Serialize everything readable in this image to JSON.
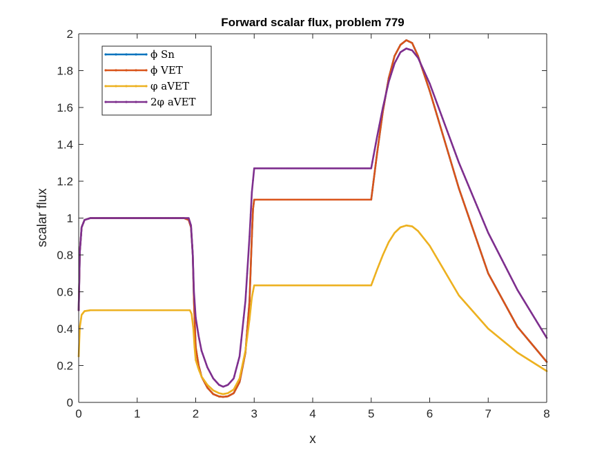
{
  "chart_data": {
    "type": "line",
    "title": "Forward scalar flux, problem 779",
    "xlabel": "x",
    "ylabel": "scalar flux",
    "xlim": [
      0,
      8
    ],
    "ylim": [
      0,
      2
    ],
    "xticks": [
      "0",
      "1",
      "2",
      "3",
      "4",
      "5",
      "6",
      "7",
      "8"
    ],
    "yticks": [
      "0",
      "0.2",
      "0.4",
      "0.6",
      "0.8",
      "1",
      "1.2",
      "1.4",
      "1.6",
      "1.8",
      "2"
    ],
    "grid": false,
    "legend": "top-left",
    "series": [
      {
        "name": "ϕ Sn",
        "color": "#0072BD",
        "points": [
          [
            0,
            0.5
          ],
          [
            0.02,
            0.82
          ],
          [
            0.05,
            0.95
          ],
          [
            0.1,
            0.99
          ],
          [
            0.2,
            1.0
          ],
          [
            1.8,
            1.0
          ],
          [
            1.88,
            0.99
          ],
          [
            1.92,
            0.95
          ],
          [
            1.95,
            0.8
          ],
          [
            1.97,
            0.55
          ],
          [
            2.0,
            0.3
          ],
          [
            2.05,
            0.2
          ],
          [
            2.1,
            0.14
          ],
          [
            2.2,
            0.08
          ],
          [
            2.3,
            0.045
          ],
          [
            2.4,
            0.032
          ],
          [
            2.47,
            0.03
          ],
          [
            2.55,
            0.033
          ],
          [
            2.65,
            0.05
          ],
          [
            2.75,
            0.11
          ],
          [
            2.85,
            0.27
          ],
          [
            2.92,
            0.55
          ],
          [
            2.96,
            0.9
          ],
          [
            2.98,
            1.05
          ],
          [
            3.0,
            1.1
          ],
          [
            5.0,
            1.1
          ],
          [
            5.1,
            1.35
          ],
          [
            5.2,
            1.58
          ],
          [
            5.3,
            1.76
          ],
          [
            5.4,
            1.88
          ],
          [
            5.5,
            1.94
          ],
          [
            5.6,
            1.965
          ],
          [
            5.7,
            1.95
          ],
          [
            5.8,
            1.88
          ],
          [
            6.0,
            1.69
          ],
          [
            6.5,
            1.16
          ],
          [
            7.0,
            0.7
          ],
          [
            7.5,
            0.41
          ],
          [
            8.0,
            0.22
          ]
        ]
      },
      {
        "name": "ϕ VET",
        "color": "#D95319",
        "points": [
          [
            0,
            0.5
          ],
          [
            0.02,
            0.82
          ],
          [
            0.05,
            0.95
          ],
          [
            0.1,
            0.99
          ],
          [
            0.2,
            1.0
          ],
          [
            1.8,
            1.0
          ],
          [
            1.88,
            0.99
          ],
          [
            1.92,
            0.95
          ],
          [
            1.95,
            0.8
          ],
          [
            1.97,
            0.55
          ],
          [
            2.0,
            0.3
          ],
          [
            2.05,
            0.2
          ],
          [
            2.1,
            0.14
          ],
          [
            2.2,
            0.08
          ],
          [
            2.3,
            0.045
          ],
          [
            2.4,
            0.032
          ],
          [
            2.47,
            0.03
          ],
          [
            2.55,
            0.033
          ],
          [
            2.65,
            0.05
          ],
          [
            2.75,
            0.11
          ],
          [
            2.85,
            0.27
          ],
          [
            2.92,
            0.55
          ],
          [
            2.96,
            0.9
          ],
          [
            2.98,
            1.05
          ],
          [
            3.0,
            1.1
          ],
          [
            5.0,
            1.1
          ],
          [
            5.1,
            1.35
          ],
          [
            5.2,
            1.58
          ],
          [
            5.3,
            1.76
          ],
          [
            5.4,
            1.88
          ],
          [
            5.5,
            1.94
          ],
          [
            5.6,
            1.965
          ],
          [
            5.7,
            1.95
          ],
          [
            5.8,
            1.88
          ],
          [
            6.0,
            1.69
          ],
          [
            6.5,
            1.16
          ],
          [
            7.0,
            0.7
          ],
          [
            7.5,
            0.41
          ],
          [
            8.0,
            0.22
          ]
        ]
      },
      {
        "name": "φ aVET",
        "color": "#EDB120",
        "points": [
          [
            0,
            0.25
          ],
          [
            0.02,
            0.41
          ],
          [
            0.05,
            0.475
          ],
          [
            0.1,
            0.495
          ],
          [
            0.2,
            0.5
          ],
          [
            1.9,
            0.5
          ],
          [
            1.93,
            0.48
          ],
          [
            1.96,
            0.4
          ],
          [
            1.98,
            0.3
          ],
          [
            2.0,
            0.23
          ],
          [
            2.05,
            0.18
          ],
          [
            2.1,
            0.14
          ],
          [
            2.2,
            0.095
          ],
          [
            2.3,
            0.065
          ],
          [
            2.4,
            0.05
          ],
          [
            2.47,
            0.045
          ],
          [
            2.55,
            0.05
          ],
          [
            2.65,
            0.07
          ],
          [
            2.75,
            0.13
          ],
          [
            2.85,
            0.28
          ],
          [
            2.92,
            0.45
          ],
          [
            2.96,
            0.57
          ],
          [
            3.0,
            0.635
          ],
          [
            5.0,
            0.635
          ],
          [
            5.1,
            0.72
          ],
          [
            5.2,
            0.8
          ],
          [
            5.3,
            0.87
          ],
          [
            5.4,
            0.92
          ],
          [
            5.5,
            0.95
          ],
          [
            5.6,
            0.96
          ],
          [
            5.7,
            0.955
          ],
          [
            5.8,
            0.93
          ],
          [
            6.0,
            0.85
          ],
          [
            6.5,
            0.58
          ],
          [
            7.0,
            0.4
          ],
          [
            7.5,
            0.27
          ],
          [
            8.0,
            0.17
          ]
        ]
      },
      {
        "name": "2φ aVET",
        "color": "#7E2F8E",
        "points": [
          [
            0,
            0.5
          ],
          [
            0.02,
            0.82
          ],
          [
            0.05,
            0.95
          ],
          [
            0.1,
            0.99
          ],
          [
            0.2,
            1.0
          ],
          [
            1.88,
            1.0
          ],
          [
            1.92,
            0.96
          ],
          [
            1.95,
            0.8
          ],
          [
            1.97,
            0.6
          ],
          [
            2.0,
            0.46
          ],
          [
            2.05,
            0.36
          ],
          [
            2.1,
            0.28
          ],
          [
            2.2,
            0.19
          ],
          [
            2.3,
            0.13
          ],
          [
            2.4,
            0.095
          ],
          [
            2.47,
            0.085
          ],
          [
            2.55,
            0.095
          ],
          [
            2.65,
            0.13
          ],
          [
            2.75,
            0.25
          ],
          [
            2.85,
            0.55
          ],
          [
            2.92,
            0.9
          ],
          [
            2.96,
            1.14
          ],
          [
            3.0,
            1.27
          ],
          [
            5.0,
            1.27
          ],
          [
            5.1,
            1.44
          ],
          [
            5.2,
            1.6
          ],
          [
            5.3,
            1.74
          ],
          [
            5.4,
            1.84
          ],
          [
            5.5,
            1.9
          ],
          [
            5.6,
            1.92
          ],
          [
            5.7,
            1.91
          ],
          [
            5.8,
            1.87
          ],
          [
            6.0,
            1.73
          ],
          [
            6.5,
            1.3
          ],
          [
            7.0,
            0.92
          ],
          [
            7.5,
            0.61
          ],
          [
            8.0,
            0.35
          ]
        ]
      }
    ]
  }
}
